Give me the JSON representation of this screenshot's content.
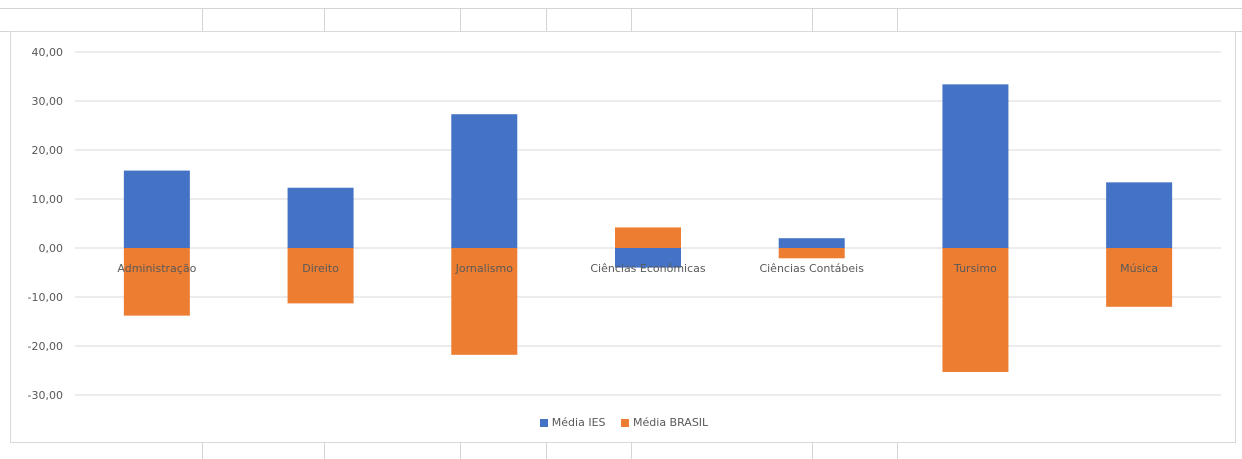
{
  "colors": {
    "ies": "#4472c4",
    "brasil": "#ed7d31",
    "grid": "#d9d9d9",
    "axis_text": "#595959"
  },
  "chart_data": {
    "type": "bar",
    "stacked": true,
    "categories": [
      "Administração",
      "Direito",
      "Jornalismo",
      "Ciências Econômicas",
      "Ciências Contábeis",
      "Tursimo",
      "Música"
    ],
    "series": [
      {
        "name": "Média IES",
        "values": [
          15.8,
          12.3,
          27.3,
          -4.0,
          2.0,
          33.4,
          13.4
        ]
      },
      {
        "name": "Média BRASIL",
        "values": [
          -13.8,
          -11.3,
          -21.8,
          4.2,
          -2.1,
          -25.3,
          -12.0
        ]
      }
    ],
    "y_ticks": [
      "40,00",
      "30,00",
      "20,00",
      "10,00",
      "0,00",
      "-10,00",
      "-20,00",
      "-30,00"
    ],
    "ylim": [
      -30,
      40
    ],
    "grid": true,
    "legend_position": "bottom",
    "category_labels_position": "on zero line"
  }
}
